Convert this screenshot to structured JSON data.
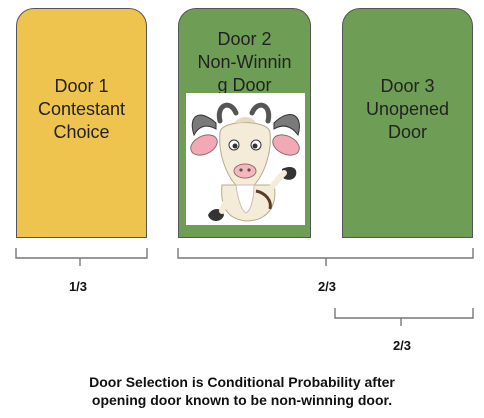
{
  "colors": {
    "door_yellow": "#EEC44E",
    "door_green": "#6E9E55",
    "bracket": "#777777"
  },
  "doors": [
    {
      "lines": [
        "Door 1",
        "Contestant",
        "Choice"
      ],
      "color": "door_yellow"
    },
    {
      "lines": [
        "Door 2",
        "Non-Winnin",
        "g Door"
      ],
      "color": "door_green",
      "image": "goat-icon"
    },
    {
      "lines": [
        "Door 3",
        "Unopened",
        "Door"
      ],
      "color": "door_green"
    }
  ],
  "probabilities": {
    "door1": "1/3",
    "doors2and3": "2/3",
    "door3": "2/3"
  },
  "caption": {
    "line1": "Door Selection is Conditional Probability after",
    "line2": "opening door known to be non-winning door."
  }
}
